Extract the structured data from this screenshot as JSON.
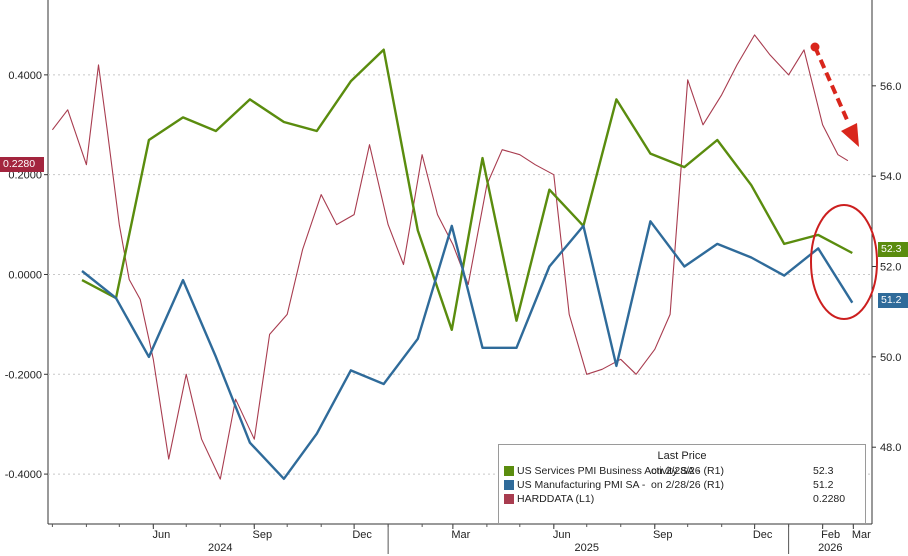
{
  "colors": {
    "services": "#5a8c0e",
    "manufacturing": "#2f6b9a",
    "hard": "#a83c4f",
    "arrow": "#d9261c",
    "circle": "#cc1f1f"
  },
  "legend": {
    "title": "Last Price",
    "rows": [
      {
        "name": "US Services PMI Business Activity SA -",
        "date": "on 2/28/26  (R1)",
        "value": "52.3"
      },
      {
        "name": "US Manufacturing PMI SA -",
        "date": "on 2/28/26  (R1)",
        "value": "51.2"
      },
      {
        "name": "HARDDATA  (L1)",
        "date": "",
        "value": "0.2280"
      }
    ]
  },
  "badges": {
    "left": "0.2280",
    "right_services": "52.3",
    "right_manufacturing": "51.2"
  },
  "chart_data": {
    "type": "line",
    "x_axis": {
      "month_labels": [
        "Jun",
        "Sep",
        "Dec",
        "Mar",
        "Jun",
        "Sep",
        "Dec",
        "Feb",
        "Mar"
      ],
      "year_labels": [
        "2024",
        "2025",
        "2026"
      ]
    },
    "left_axis": {
      "ticks": [
        "0.4000",
        "0.2000",
        "0.0000",
        "-0.2000",
        "-0.4000"
      ],
      "ylim": [
        -0.5,
        0.55
      ]
    },
    "right_axis": {
      "ticks": [
        "56.0",
        "54.0",
        "52.0",
        "50.0",
        "48.0"
      ],
      "ylim": [
        46.3,
        57.9
      ]
    },
    "series": [
      {
        "name": "US Services PMI Business Activity SA",
        "axis": "right",
        "x": [
          "2024-03-28",
          "2024-04-28",
          "2024-05-28",
          "2024-06-28",
          "2024-07-28",
          "2024-08-28",
          "2024-09-28",
          "2024-10-28",
          "2024-11-28",
          "2024-12-28",
          "2025-01-28",
          "2025-02-28",
          "2025-03-28",
          "2025-04-28",
          "2025-05-28",
          "2025-06-28",
          "2025-07-28",
          "2025-08-28",
          "2025-09-28",
          "2025-10-28",
          "2025-11-28",
          "2025-12-28",
          "2026-01-28",
          "2026-02-28"
        ],
        "values": [
          51.7,
          51.3,
          54.8,
          55.3,
          55.0,
          55.7,
          55.2,
          55.0,
          56.1,
          56.8,
          52.8,
          50.6,
          54.4,
          50.8,
          53.7,
          52.9,
          55.7,
          54.5,
          54.2,
          54.8,
          53.8,
          52.5,
          52.7,
          52.3
        ]
      },
      {
        "name": "US Manufacturing PMI SA",
        "axis": "right",
        "x": [
          "2024-03-28",
          "2024-04-28",
          "2024-05-28",
          "2024-06-28",
          "2024-07-28",
          "2024-08-28",
          "2024-09-28",
          "2024-10-28",
          "2024-11-28",
          "2024-12-28",
          "2025-01-28",
          "2025-02-28",
          "2025-03-28",
          "2025-04-28",
          "2025-05-28",
          "2025-06-28",
          "2025-07-28",
          "2025-08-28",
          "2025-09-28",
          "2025-10-28",
          "2025-11-28",
          "2025-12-28",
          "2026-01-28",
          "2026-02-28"
        ],
        "values": [
          51.9,
          51.3,
          50.0,
          51.7,
          50.0,
          48.1,
          47.3,
          48.3,
          49.7,
          49.4,
          50.4,
          52.9,
          50.2,
          50.2,
          52.0,
          52.9,
          49.8,
          53.0,
          52.0,
          52.5,
          52.2,
          51.8,
          52.4,
          51.2
        ]
      },
      {
        "name": "HARDDATA",
        "axis": "left",
        "x": [
          "2024-03-01",
          "2024-03-15",
          "2024-04-01",
          "2024-04-12",
          "2024-04-20",
          "2024-05-01",
          "2024-05-10",
          "2024-05-20",
          "2024-06-01",
          "2024-06-15",
          "2024-07-01",
          "2024-07-15",
          "2024-08-01",
          "2024-08-15",
          "2024-09-01",
          "2024-09-15",
          "2024-10-01",
          "2024-10-15",
          "2024-11-01",
          "2024-11-15",
          "2024-12-01",
          "2024-12-15",
          "2025-01-01",
          "2025-01-15",
          "2025-02-01",
          "2025-02-15",
          "2025-03-01",
          "2025-03-15",
          "2025-04-01",
          "2025-04-15",
          "2025-05-01",
          "2025-05-15",
          "2025-06-01",
          "2025-06-15",
          "2025-07-01",
          "2025-07-15",
          "2025-08-01",
          "2025-08-15",
          "2025-09-01",
          "2025-09-15",
          "2025-10-01",
          "2025-10-15",
          "2025-11-01",
          "2025-11-15",
          "2025-12-01",
          "2025-12-15",
          "2026-01-01",
          "2026-01-15",
          "2026-02-01",
          "2026-02-15",
          "2026-02-24"
        ],
        "values": [
          0.29,
          0.33,
          0.22,
          0.42,
          0.29,
          0.1,
          -0.01,
          -0.05,
          -0.17,
          -0.37,
          -0.2,
          -0.33,
          -0.41,
          -0.25,
          -0.33,
          -0.12,
          -0.08,
          0.05,
          0.16,
          0.1,
          0.12,
          0.26,
          0.1,
          0.02,
          0.24,
          0.12,
          0.06,
          -0.02,
          0.18,
          0.25,
          0.24,
          0.22,
          0.2,
          -0.08,
          -0.2,
          -0.19,
          -0.17,
          -0.2,
          -0.15,
          -0.08,
          0.39,
          0.3,
          0.36,
          0.42,
          0.48,
          0.44,
          0.4,
          0.45,
          0.3,
          0.24,
          0.228
        ]
      }
    ],
    "xlim": [
      "2024-02-26",
      "2026-03-18"
    ]
  }
}
